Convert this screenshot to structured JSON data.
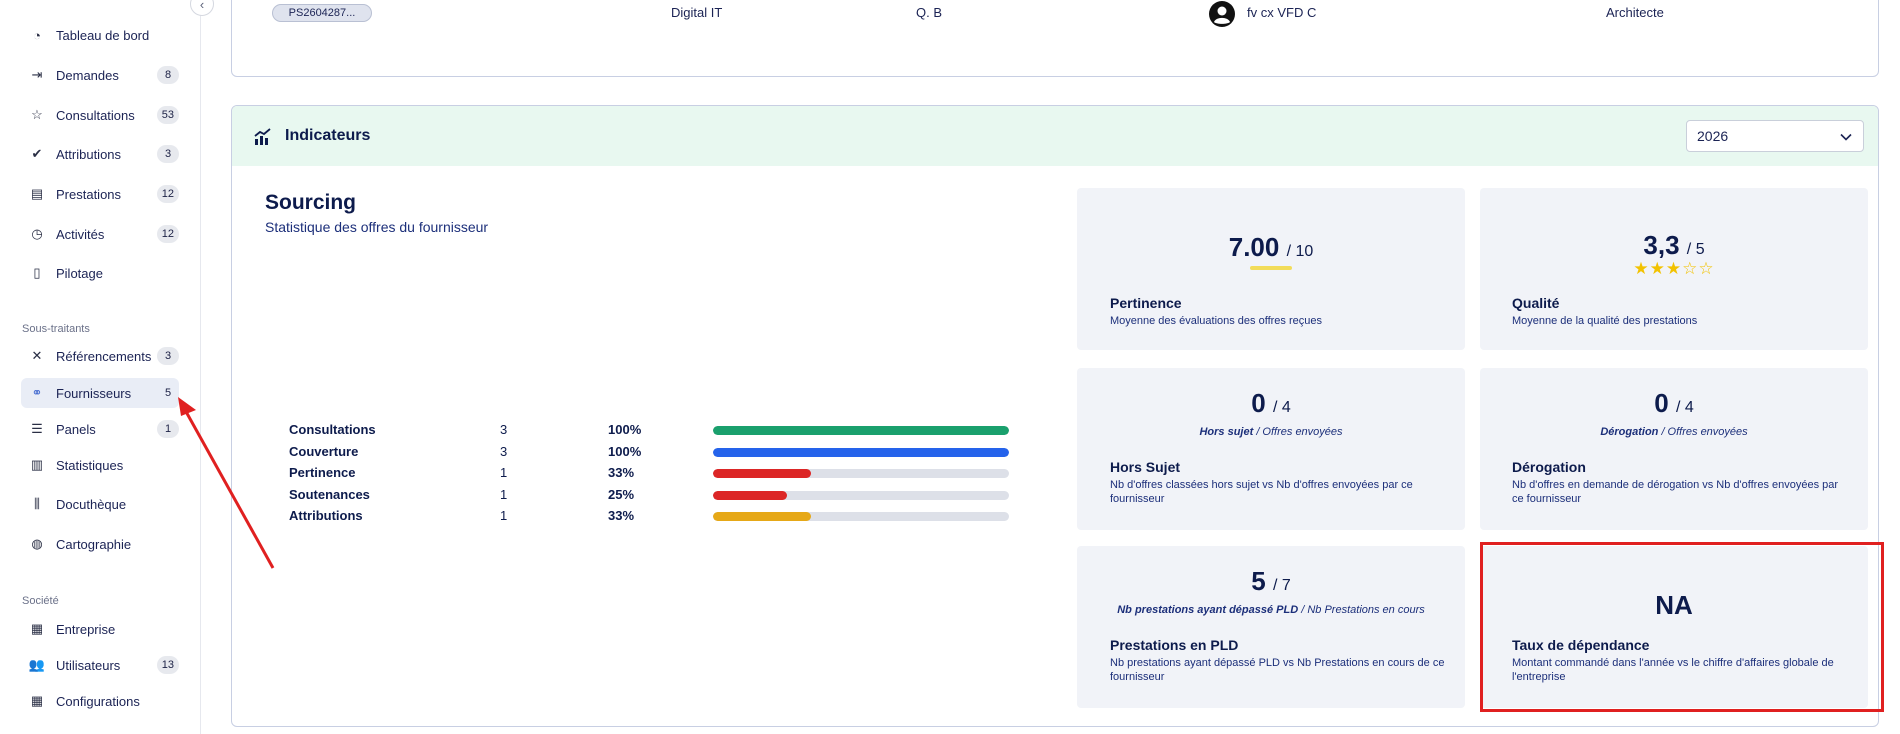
{
  "sidebar": {
    "collapse_icon": "chevron-left-icon",
    "items": [
      {
        "label": "Tableau de bord",
        "icon": "dashboard-icon",
        "badge": ""
      },
      {
        "label": "Demandes",
        "icon": "login-icon",
        "badge": "8"
      },
      {
        "label": "Consultations",
        "icon": "star-icon",
        "badge": "53"
      },
      {
        "label": "Attributions",
        "icon": "double-check-icon",
        "badge": "3"
      },
      {
        "label": "Prestations",
        "icon": "document-gear-icon",
        "badge": "12"
      },
      {
        "label": "Activités",
        "icon": "clock-icon",
        "badge": "12"
      },
      {
        "label": "Pilotage",
        "icon": "document-icon",
        "badge": ""
      }
    ],
    "section_subcontractors": "Sous-traitants",
    "subcontractor_items": [
      {
        "label": "Référencements",
        "icon": "network-icon",
        "badge": "3"
      },
      {
        "label": "Fournisseurs",
        "icon": "handshake-icon",
        "badge": "5",
        "active": true
      },
      {
        "label": "Panels",
        "icon": "list-icon",
        "badge": "1"
      },
      {
        "label": "Statistiques",
        "icon": "chart-icon",
        "badge": ""
      },
      {
        "label": "Docuthèque",
        "icon": "library-icon",
        "badge": ""
      },
      {
        "label": "Cartographie",
        "icon": "globe-icon",
        "badge": ""
      }
    ],
    "section_company": "Société",
    "company_items": [
      {
        "label": "Entreprise",
        "icon": "building-icon",
        "badge": ""
      },
      {
        "label": "Utilisateurs",
        "icon": "users-icon",
        "badge": "13"
      },
      {
        "label": "Configurations",
        "icon": "building-icon",
        "badge": ""
      }
    ]
  },
  "top_row": {
    "reference": "PS2604287...",
    "department": "Digital IT",
    "initials": "Q. B",
    "person_name": "fv cx VFD C",
    "role": "Architecte"
  },
  "indicators": {
    "title": "Indicateurs",
    "year": "2026",
    "sourcing_title": "Sourcing",
    "sourcing_subtitle": "Statistique des offres du fournisseur",
    "stats": [
      {
        "label": "Consultations",
        "count": "3",
        "percent": "100%",
        "fraction": 1.0,
        "color": "#1aa06d"
      },
      {
        "label": "Couverture",
        "count": "3",
        "percent": "100%",
        "fraction": 1.0,
        "color": "#2563eb"
      },
      {
        "label": "Pertinence",
        "count": "1",
        "percent": "33%",
        "fraction": 0.33,
        "color": "#dc2626"
      },
      {
        "label": "Soutenances",
        "count": "1",
        "percent": "25%",
        "fraction": 0.25,
        "color": "#dc2626"
      },
      {
        "label": "Attributions",
        "count": "1",
        "percent": "33%",
        "fraction": 0.33,
        "color": "#e6a817"
      }
    ],
    "tiles": {
      "pertinence": {
        "value": "7.00",
        "of": "/ 10",
        "title": "Pertinence",
        "desc": "Moyenne des évaluations des offres reçues"
      },
      "qualite": {
        "value": "3,3",
        "of": "/ 5",
        "stars": 3,
        "stars_total": 5,
        "title": "Qualité",
        "desc": "Moyenne de la qualité des prestations"
      },
      "hors_sujet": {
        "value": "0",
        "of": "/ 4",
        "hint_bold": "Hors sujet",
        "hint_rest": " / Offres envoyées",
        "title": "Hors Sujet",
        "desc": "Nb d'offres classées hors sujet vs Nb d'offres envoyées par ce fournisseur"
      },
      "derogation": {
        "value": "0",
        "of": "/ 4",
        "hint_bold": "Dérogation",
        "hint_rest": " / Offres envoyées",
        "title": "Dérogation",
        "desc": "Nb d'offres en demande de dérogation vs Nb d'offres envoyées par ce fournisseur"
      },
      "pld": {
        "value": "5",
        "of": "/ 7",
        "hint_bold": "Nb prestations ayant dépassé PLD",
        "hint_rest": " / Nb Prestations en cours",
        "title": "Prestations en PLD",
        "desc": "Nb prestations ayant dépassé PLD vs Nb Prestations en cours de ce fournisseur"
      },
      "dependance": {
        "value": "NA",
        "title": "Taux de dépendance",
        "desc": "Montant commandé dans l'année vs le chiffre d'affaires globale de l'entreprise"
      }
    }
  },
  "colors": {
    "accent_green_header": "#e8f8f0",
    "highlight_red": "#e02020",
    "star_gold": "#f2c200"
  }
}
